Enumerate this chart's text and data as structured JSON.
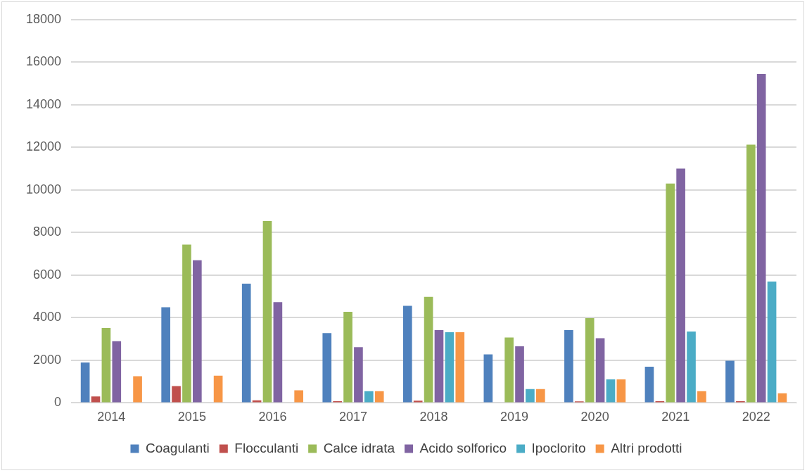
{
  "chart_data": {
    "type": "bar",
    "categories": [
      "2014",
      "2015",
      "2016",
      "2017",
      "2018",
      "2019",
      "2020",
      "2021",
      "2022"
    ],
    "series": [
      {
        "name": "Coagulanti",
        "color": "#4f81bd",
        "values": [
          1900,
          4490,
          5600,
          3280,
          4560,
          2280,
          3420,
          1700,
          1980
        ]
      },
      {
        "name": "Flocculanti",
        "color": "#c0504d",
        "values": [
          300,
          790,
          120,
          80,
          100,
          0,
          70,
          80,
          80
        ]
      },
      {
        "name": "Calce idrata",
        "color": "#9bbb59",
        "values": [
          3520,
          7430,
          8540,
          4280,
          4980,
          3070,
          3980,
          10300,
          12130
        ]
      },
      {
        "name": "Acido solforico",
        "color": "#8064a2",
        "values": [
          2900,
          6700,
          4730,
          2620,
          3420,
          2660,
          3040,
          11000,
          15450
        ]
      },
      {
        "name": "Ipoclorito",
        "color": "#4bacc6",
        "values": [
          0,
          0,
          0,
          550,
          3320,
          650,
          1100,
          3350,
          5700
        ]
      },
      {
        "name": "Altri prodotti",
        "color": "#f79646",
        "values": [
          1250,
          1280,
          590,
          550,
          3320,
          650,
          1100,
          550,
          450
        ]
      }
    ],
    "ylim": [
      0,
      18000
    ],
    "yticks": [
      0,
      2000,
      4000,
      6000,
      8000,
      10000,
      12000,
      14000,
      16000,
      18000
    ],
    "grid": "y",
    "legend": "bottom"
  }
}
